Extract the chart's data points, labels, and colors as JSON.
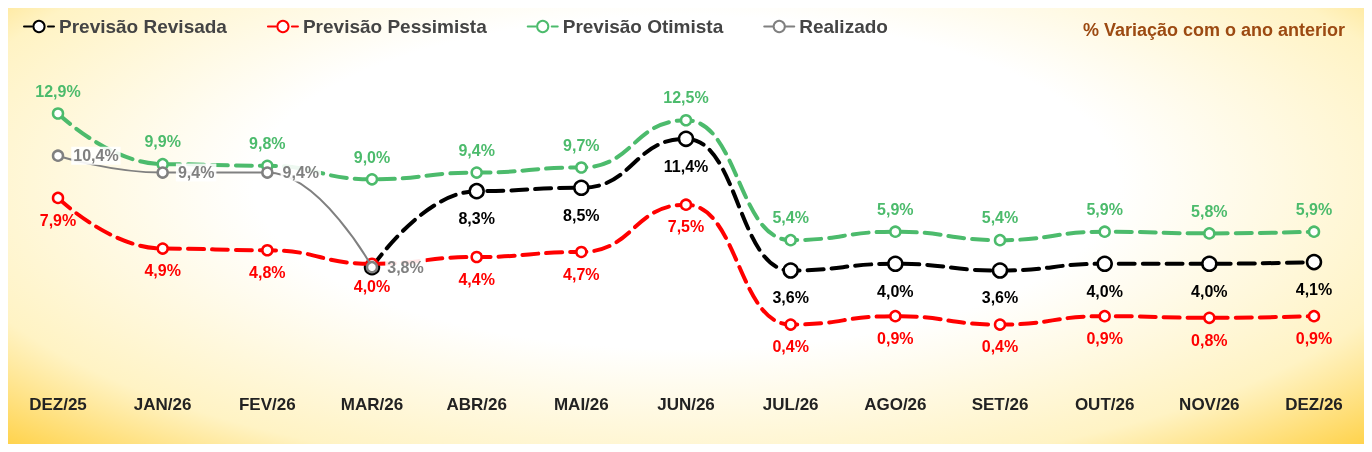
{
  "chart_data": {
    "type": "line",
    "title": "% Variação com o ano anterior",
    "categories": [
      "DEZ/25",
      "JAN/26",
      "FEV/26",
      "MAR/26",
      "ABR/26",
      "MAI/26",
      "JUN/26",
      "JUL/26",
      "AGO/26",
      "SET/26",
      "OUT/26",
      "NOV/26",
      "DEZ/26"
    ],
    "series": [
      {
        "name": "Previsão Revisada",
        "color": "#000000",
        "line_style": "dashed",
        "values": [
          null,
          null,
          null,
          3.8,
          8.3,
          8.5,
          11.4,
          3.6,
          4.0,
          3.6,
          4.0,
          4.0,
          4.1
        ],
        "value_labels": [
          null,
          null,
          null,
          null,
          "8,3%",
          "8,5%",
          "11,4%",
          "3,6%",
          "4,0%",
          "3,6%",
          "4,0%",
          "4,0%",
          "4,1%"
        ]
      },
      {
        "name": "Previsão Pessimista",
        "color": "#ff0000",
        "line_style": "dashed",
        "values": [
          7.9,
          4.9,
          4.8,
          4.0,
          4.4,
          4.7,
          7.5,
          0.4,
          0.9,
          0.4,
          0.9,
          0.8,
          0.9
        ],
        "value_labels": [
          "7,9%",
          "4,9%",
          "4,8%",
          "4,0%",
          "4,4%",
          "4,7%",
          "7,5%",
          "0,4%",
          "0,9%",
          "0,4%",
          "0,9%",
          "0,8%",
          "0,9%"
        ]
      },
      {
        "name": "Previsão Otimista",
        "color": "#4cbb6c",
        "line_style": "dashed",
        "values": [
          12.9,
          9.9,
          9.8,
          9.0,
          9.4,
          9.7,
          12.5,
          5.4,
          5.9,
          5.4,
          5.9,
          5.8,
          5.9
        ],
        "value_labels": [
          "12,9%",
          "9,9%",
          "9,8%",
          "9,0%",
          "9,4%",
          "9,7%",
          "12,5%",
          "5,4%",
          "5,9%",
          "5,4%",
          "5,9%",
          "5,8%",
          "5,9%"
        ]
      },
      {
        "name": "Realizado",
        "color": "#808080",
        "line_style": "solid",
        "values": [
          10.4,
          9.4,
          9.4,
          3.8,
          null,
          null,
          null,
          null,
          null,
          null,
          null,
          null,
          null
        ],
        "value_labels": [
          "10,4%",
          "9,4%",
          "9,4%",
          "3,8%",
          null,
          null,
          null,
          null,
          null,
          null,
          null,
          null,
          null
        ]
      }
    ],
    "marker": "circle",
    "grid": false,
    "legend": "top left",
    "tick_labels": "x"
  }
}
